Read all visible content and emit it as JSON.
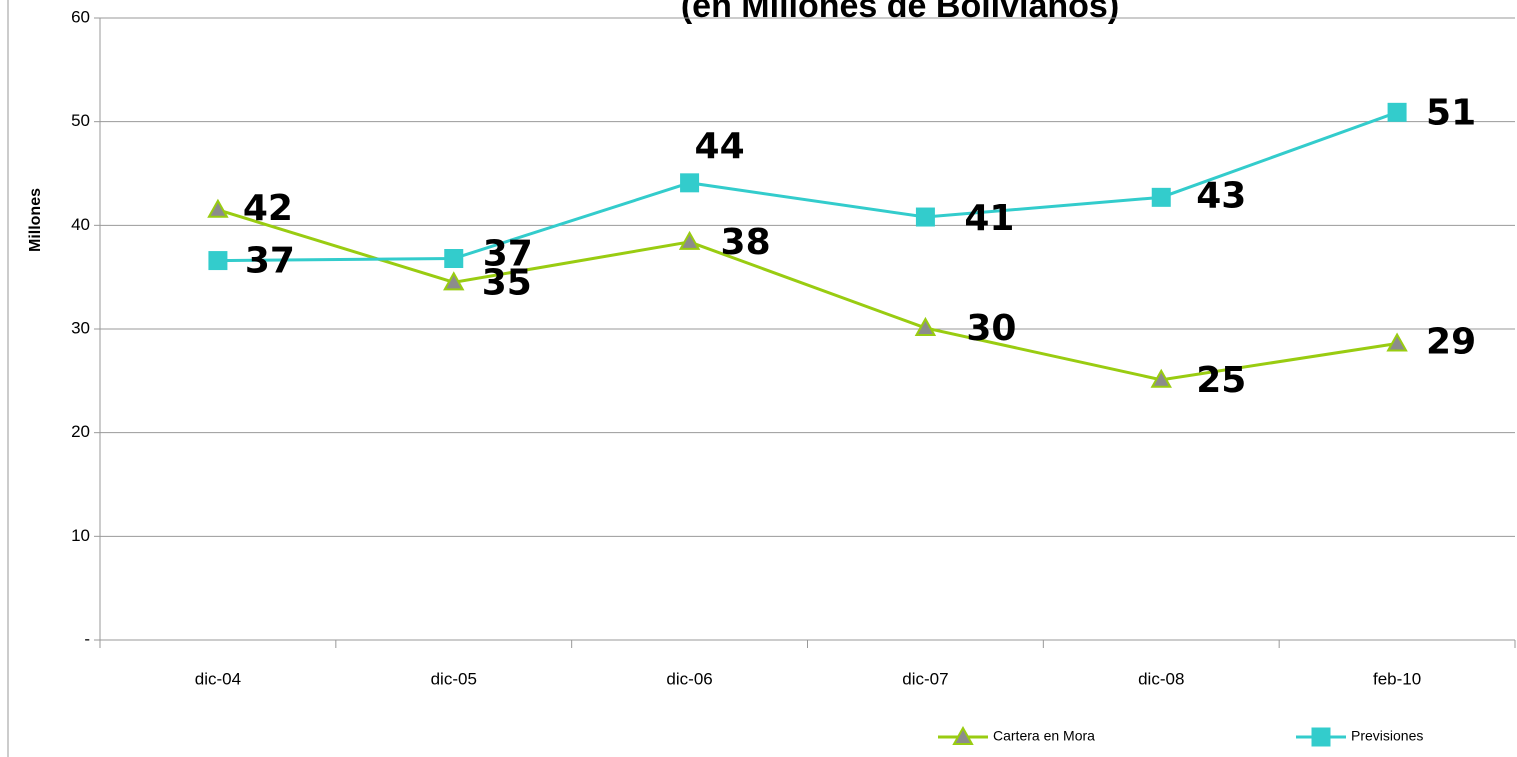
{
  "chart_data": {
    "type": "line",
    "title": "(en Millones de Bolivianos)",
    "y_label": "Millones",
    "categories": [
      "dic-04",
      "dic-05",
      "dic-06",
      "dic-07",
      "dic-08",
      "feb-10"
    ],
    "series": [
      {
        "name": "Cartera en Mora",
        "color": "#99cc11",
        "marker": "triangle",
        "values": [
          41.5,
          34.5,
          38.4,
          30.1,
          25.1,
          28.6
        ],
        "value_labels": [
          "42",
          "35",
          "38",
          "30",
          "25",
          "29"
        ]
      },
      {
        "name": "Previsiones",
        "color": "#33cccc",
        "marker": "square",
        "values": [
          36.6,
          36.8,
          44.1,
          40.8,
          42.7,
          50.9
        ],
        "value_labels": [
          "37",
          "37",
          "44",
          "41",
          "43",
          "51"
        ]
      }
    ],
    "ylim": [
      0,
      60
    ],
    "yticks": [
      {
        "value": 0,
        "label": "-"
      },
      10,
      20,
      30,
      40,
      50,
      60
    ],
    "grid": true,
    "legend": "bottom-right"
  }
}
